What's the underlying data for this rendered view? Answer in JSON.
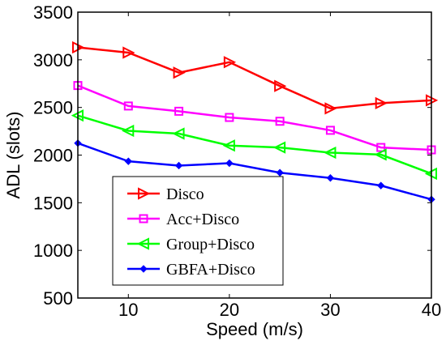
{
  "chart_data": {
    "type": "line",
    "title": "",
    "xlabel": "Speed (m/s)",
    "ylabel": "ADL (slots)",
    "xlim": [
      5,
      40
    ],
    "ylim": [
      500,
      3500
    ],
    "xticks": [
      10,
      20,
      30,
      40
    ],
    "yticks": [
      500,
      1000,
      1500,
      2000,
      2500,
      3000,
      3500
    ],
    "grid": false,
    "legend_position": "lower-left",
    "x": [
      5,
      10,
      15,
      20,
      25,
      30,
      35,
      40
    ],
    "series": [
      {
        "name": "Disco",
        "color": "#ff0000",
        "marker": "triangle-right",
        "values": [
          3130,
          3075,
          2865,
          2975,
          2725,
          2490,
          2545,
          2575
        ]
      },
      {
        "name": "Acc+Disco",
        "color": "#ff00ff",
        "marker": "square",
        "values": [
          2730,
          2515,
          2460,
          2395,
          2355,
          2260,
          2080,
          2055
        ]
      },
      {
        "name": "Group+Disco",
        "color": "#00ff00",
        "marker": "triangle-left",
        "values": [
          2415,
          2255,
          2225,
          2100,
          2080,
          2025,
          2005,
          1805
        ]
      },
      {
        "name": "GBFA+Disco",
        "color": "#0000ff",
        "marker": "diamond",
        "values": [
          2125,
          1935,
          1890,
          1915,
          1815,
          1760,
          1680,
          1535
        ]
      }
    ]
  }
}
